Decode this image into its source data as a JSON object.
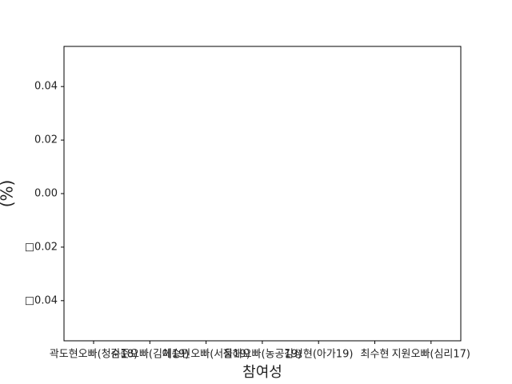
{
  "chart_data": {
    "type": "bar",
    "xlabel": "참여성",
    "ylabel": "(%)",
    "categories": [
      "곽도현오빠(청순18)",
      "김준오빠(김체19)",
      "이승민오빠(서울19)",
      "정해오빠(농공19)",
      "김성현(아가19)",
      "최수현",
      "지원오빠(심리17)"
    ],
    "ylim": [
      -0.055,
      0.055
    ],
    "yticks": [
      {
        "value": -0.04,
        "label": "□0.04"
      },
      {
        "value": -0.02,
        "label": "□0.02"
      },
      {
        "value": 0.0,
        "label": "0.00"
      },
      0.02,
      0.04
    ]
  }
}
